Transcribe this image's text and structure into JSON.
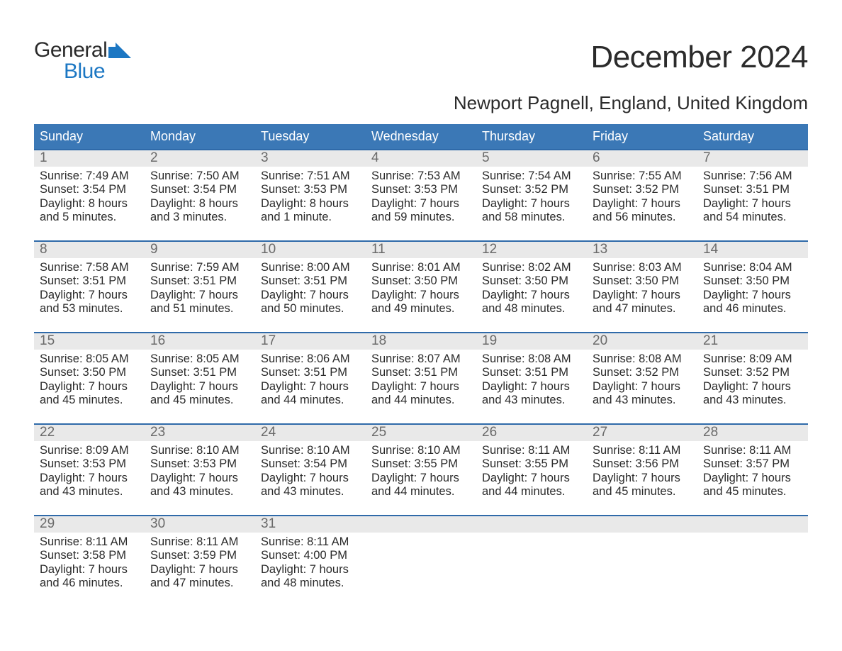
{
  "brand": {
    "line1": "General",
    "line2": "Blue"
  },
  "title": "December 2024",
  "location": "Newport Pagnell, England, United Kingdom",
  "colors": {
    "header_blue": "#3b78b6",
    "accent_line": "#2f6aa9",
    "daynum_bg": "#e9e9e9",
    "text": "#2b2b2b",
    "daynum_text": "#6a6a6a",
    "logo_blue": "#1c77c3",
    "background": "#ffffff"
  },
  "days_of_week": [
    "Sunday",
    "Monday",
    "Tuesday",
    "Wednesday",
    "Thursday",
    "Friday",
    "Saturday"
  ],
  "labels": {
    "sunrise": "Sunrise:",
    "sunset": "Sunset:",
    "daylight": "Daylight:"
  },
  "weeks": [
    [
      {
        "n": "1",
        "sunrise": "7:49 AM",
        "sunset": "3:54 PM",
        "daylight": "8 hours and 5 minutes."
      },
      {
        "n": "2",
        "sunrise": "7:50 AM",
        "sunset": "3:54 PM",
        "daylight": "8 hours and 3 minutes."
      },
      {
        "n": "3",
        "sunrise": "7:51 AM",
        "sunset": "3:53 PM",
        "daylight": "8 hours and 1 minute."
      },
      {
        "n": "4",
        "sunrise": "7:53 AM",
        "sunset": "3:53 PM",
        "daylight": "7 hours and 59 minutes."
      },
      {
        "n": "5",
        "sunrise": "7:54 AM",
        "sunset": "3:52 PM",
        "daylight": "7 hours and 58 minutes."
      },
      {
        "n": "6",
        "sunrise": "7:55 AM",
        "sunset": "3:52 PM",
        "daylight": "7 hours and 56 minutes."
      },
      {
        "n": "7",
        "sunrise": "7:56 AM",
        "sunset": "3:51 PM",
        "daylight": "7 hours and 54 minutes."
      }
    ],
    [
      {
        "n": "8",
        "sunrise": "7:58 AM",
        "sunset": "3:51 PM",
        "daylight": "7 hours and 53 minutes."
      },
      {
        "n": "9",
        "sunrise": "7:59 AM",
        "sunset": "3:51 PM",
        "daylight": "7 hours and 51 minutes."
      },
      {
        "n": "10",
        "sunrise": "8:00 AM",
        "sunset": "3:51 PM",
        "daylight": "7 hours and 50 minutes."
      },
      {
        "n": "11",
        "sunrise": "8:01 AM",
        "sunset": "3:50 PM",
        "daylight": "7 hours and 49 minutes."
      },
      {
        "n": "12",
        "sunrise": "8:02 AM",
        "sunset": "3:50 PM",
        "daylight": "7 hours and 48 minutes."
      },
      {
        "n": "13",
        "sunrise": "8:03 AM",
        "sunset": "3:50 PM",
        "daylight": "7 hours and 47 minutes."
      },
      {
        "n": "14",
        "sunrise": "8:04 AM",
        "sunset": "3:50 PM",
        "daylight": "7 hours and 46 minutes."
      }
    ],
    [
      {
        "n": "15",
        "sunrise": "8:05 AM",
        "sunset": "3:50 PM",
        "daylight": "7 hours and 45 minutes."
      },
      {
        "n": "16",
        "sunrise": "8:05 AM",
        "sunset": "3:51 PM",
        "daylight": "7 hours and 45 minutes."
      },
      {
        "n": "17",
        "sunrise": "8:06 AM",
        "sunset": "3:51 PM",
        "daylight": "7 hours and 44 minutes."
      },
      {
        "n": "18",
        "sunrise": "8:07 AM",
        "sunset": "3:51 PM",
        "daylight": "7 hours and 44 minutes."
      },
      {
        "n": "19",
        "sunrise": "8:08 AM",
        "sunset": "3:51 PM",
        "daylight": "7 hours and 43 minutes."
      },
      {
        "n": "20",
        "sunrise": "8:08 AM",
        "sunset": "3:52 PM",
        "daylight": "7 hours and 43 minutes."
      },
      {
        "n": "21",
        "sunrise": "8:09 AM",
        "sunset": "3:52 PM",
        "daylight": "7 hours and 43 minutes."
      }
    ],
    [
      {
        "n": "22",
        "sunrise": "8:09 AM",
        "sunset": "3:53 PM",
        "daylight": "7 hours and 43 minutes."
      },
      {
        "n": "23",
        "sunrise": "8:10 AM",
        "sunset": "3:53 PM",
        "daylight": "7 hours and 43 minutes."
      },
      {
        "n": "24",
        "sunrise": "8:10 AM",
        "sunset": "3:54 PM",
        "daylight": "7 hours and 43 minutes."
      },
      {
        "n": "25",
        "sunrise": "8:10 AM",
        "sunset": "3:55 PM",
        "daylight": "7 hours and 44 minutes."
      },
      {
        "n": "26",
        "sunrise": "8:11 AM",
        "sunset": "3:55 PM",
        "daylight": "7 hours and 44 minutes."
      },
      {
        "n": "27",
        "sunrise": "8:11 AM",
        "sunset": "3:56 PM",
        "daylight": "7 hours and 45 minutes."
      },
      {
        "n": "28",
        "sunrise": "8:11 AM",
        "sunset": "3:57 PM",
        "daylight": "7 hours and 45 minutes."
      }
    ],
    [
      {
        "n": "29",
        "sunrise": "8:11 AM",
        "sunset": "3:58 PM",
        "daylight": "7 hours and 46 minutes."
      },
      {
        "n": "30",
        "sunrise": "8:11 AM",
        "sunset": "3:59 PM",
        "daylight": "7 hours and 47 minutes."
      },
      {
        "n": "31",
        "sunrise": "8:11 AM",
        "sunset": "4:00 PM",
        "daylight": "7 hours and 48 minutes."
      },
      null,
      null,
      null,
      null
    ]
  ]
}
